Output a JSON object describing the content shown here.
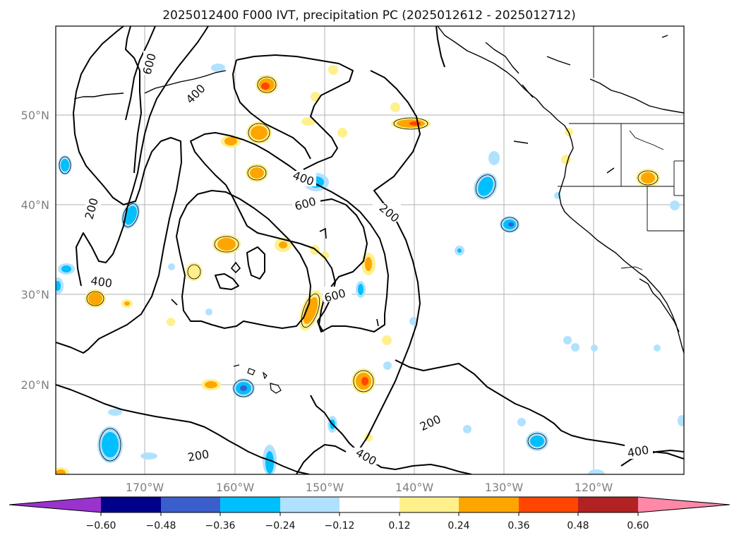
{
  "title": "2025012400 F000 IVT, precipitation PC (2025012612 - 2025012712)",
  "map": {
    "lat_labels": [
      "50°N",
      "40°N",
      "30°N",
      "20°N"
    ],
    "lon_labels": [
      "170°W",
      "160°W",
      "150°W",
      "140°W",
      "130°W",
      "120°W"
    ],
    "ivt_contour_levels": [
      "200",
      "400",
      "600"
    ]
  },
  "colorbar": {
    "ticks": [
      "−0.60",
      "−0.48",
      "−0.36",
      "−0.24",
      "−0.12",
      "0.12",
      "0.24",
      "0.36",
      "0.48",
      "0.60"
    ],
    "colors": [
      "#9933cc",
      "#00008b",
      "#3a5fcd",
      "#00bfff",
      "#b0e2ff",
      "#ffffff",
      "#fff08c",
      "#ffa500",
      "#ff4500",
      "#b22222",
      "#ff88a8"
    ]
  }
}
